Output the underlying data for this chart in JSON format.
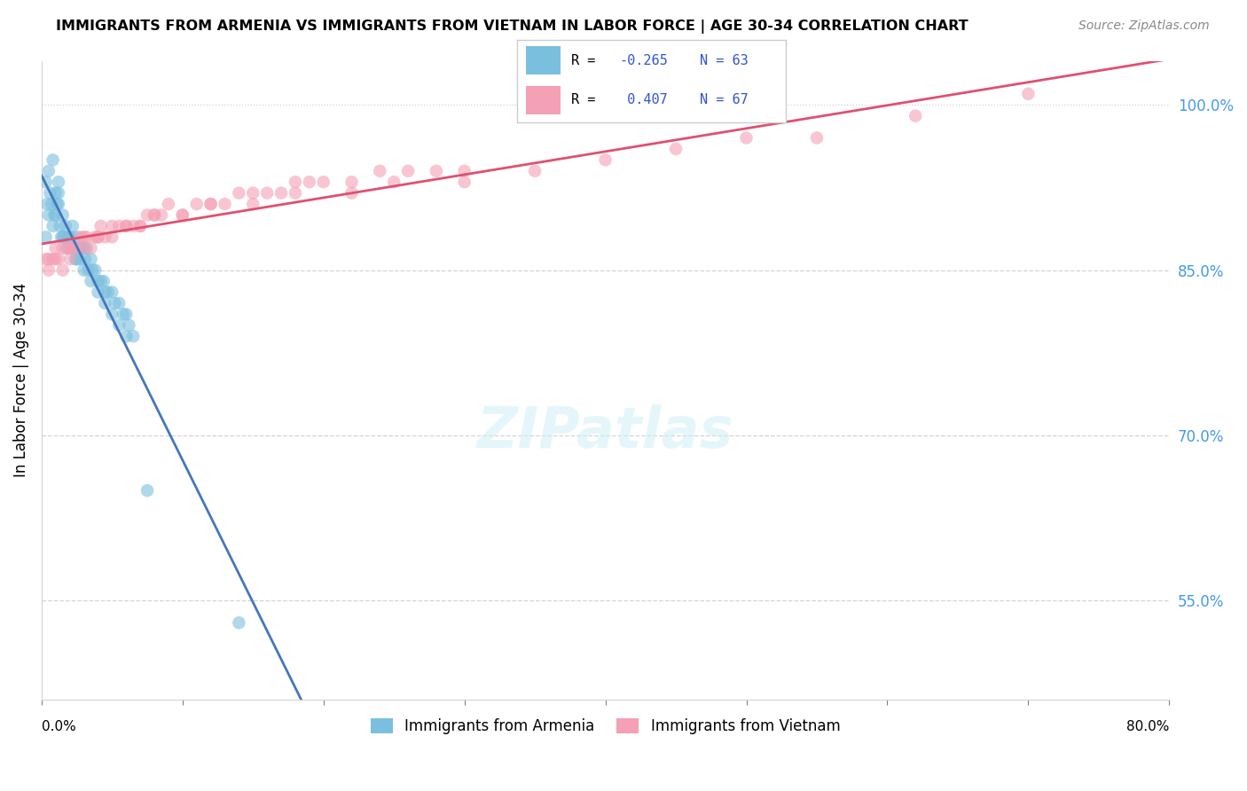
{
  "title": "IMMIGRANTS FROM ARMENIA VS IMMIGRANTS FROM VIETNAM IN LABOR FORCE | AGE 30-34 CORRELATION CHART",
  "source": "Source: ZipAtlas.com",
  "ylabel": "In Labor Force | Age 30-34",
  "x_label_bottom_left": "0.0%",
  "x_label_bottom_right": "80.0%",
  "y_ticks_right": [
    55.0,
    70.0,
    85.0,
    100.0
  ],
  "y_tick_labels_right": [
    "55.0%",
    "70.0%",
    "85.0%",
    "100.0%"
  ],
  "x_min": 0.0,
  "x_max": 80.0,
  "y_min": 46.0,
  "y_max": 104.0,
  "armenia_R": -0.265,
  "armenia_N": 63,
  "vietnam_R": 0.407,
  "vietnam_N": 67,
  "armenia_color": "#7bbfde",
  "vietnam_color": "#f4a0b5",
  "armenia_line_color": "#4477bb",
  "vietnam_line_color": "#e05070",
  "legend_labels": [
    "Immigrants from Armenia",
    "Immigrants from Vietnam"
  ],
  "watermark": "ZIPatlas",
  "armenia_scatter_x": [
    0.3,
    0.5,
    0.7,
    0.8,
    1.0,
    1.0,
    1.2,
    1.2,
    1.3,
    1.4,
    1.5,
    1.6,
    1.7,
    1.8,
    1.9,
    2.0,
    2.1,
    2.2,
    2.3,
    2.4,
    2.5,
    2.6,
    2.7,
    2.8,
    3.0,
    3.1,
    3.2,
    3.3,
    3.5,
    3.6,
    3.8,
    4.0,
    4.2,
    4.4,
    4.5,
    4.7,
    5.0,
    5.2,
    5.5,
    5.8,
    6.0,
    6.2,
    6.5,
    0.4,
    0.6,
    0.9,
    1.1,
    1.5,
    2.0,
    2.5,
    3.0,
    3.5,
    4.0,
    4.5,
    5.0,
    5.5,
    6.0,
    0.3,
    0.5,
    0.8,
    1.2,
    7.5,
    14.0
  ],
  "armenia_scatter_y": [
    88,
    90,
    91,
    89,
    92,
    90,
    91,
    93,
    89,
    88,
    90,
    88,
    89,
    87,
    88,
    87,
    88,
    89,
    87,
    86,
    88,
    87,
    86,
    87,
    87,
    86,
    87,
    85,
    86,
    85,
    85,
    84,
    84,
    84,
    83,
    83,
    83,
    82,
    82,
    81,
    81,
    80,
    79,
    91,
    92,
    90,
    91,
    88,
    87,
    86,
    85,
    84,
    83,
    82,
    81,
    80,
    79,
    93,
    94,
    95,
    92,
    65,
    53
  ],
  "vietnam_scatter_x": [
    0.3,
    0.5,
    0.8,
    1.0,
    1.2,
    1.5,
    1.8,
    2.0,
    2.2,
    2.5,
    2.8,
    3.0,
    3.2,
    3.5,
    3.8,
    4.0,
    4.2,
    4.5,
    5.0,
    5.5,
    6.0,
    6.5,
    7.0,
    7.5,
    8.0,
    8.5,
    9.0,
    10.0,
    11.0,
    12.0,
    13.0,
    14.0,
    15.0,
    16.0,
    17.0,
    18.0,
    19.0,
    20.0,
    22.0,
    24.0,
    26.0,
    28.0,
    30.0,
    0.5,
    1.0,
    1.5,
    2.0,
    3.0,
    4.0,
    5.0,
    6.0,
    7.0,
    8.0,
    10.0,
    12.0,
    15.0,
    18.0,
    22.0,
    25.0,
    30.0,
    35.0,
    40.0,
    45.0,
    50.0,
    55.0,
    62.0,
    70.0
  ],
  "vietnam_scatter_y": [
    86,
    85,
    86,
    87,
    86,
    85,
    87,
    86,
    87,
    87,
    88,
    87,
    88,
    87,
    88,
    88,
    89,
    88,
    88,
    89,
    89,
    89,
    89,
    90,
    90,
    90,
    91,
    90,
    91,
    91,
    91,
    92,
    92,
    92,
    92,
    93,
    93,
    93,
    93,
    94,
    94,
    94,
    94,
    86,
    86,
    87,
    87,
    88,
    88,
    89,
    89,
    89,
    90,
    90,
    91,
    91,
    92,
    92,
    93,
    93,
    94,
    95,
    96,
    97,
    97,
    99,
    101
  ]
}
